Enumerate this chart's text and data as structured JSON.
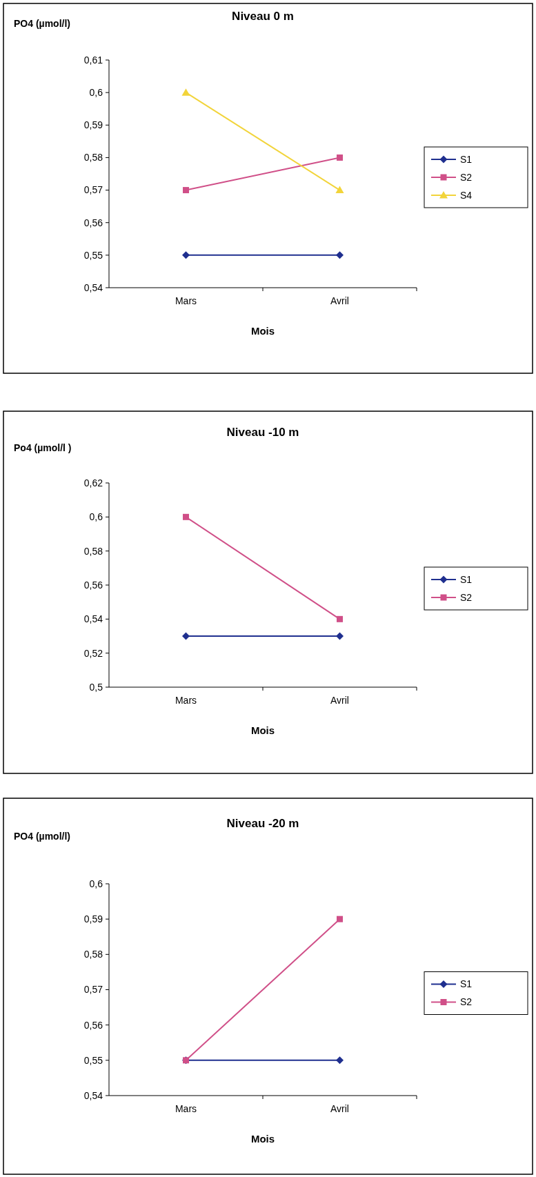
{
  "chart_data": [
    {
      "type": "line",
      "title": "Niveau 0 m",
      "xlabel": "Mois",
      "ylabel": "PO4 (µmol/l)",
      "categories": [
        "Mars",
        "Avril"
      ],
      "ylim": [
        0.54,
        0.61
      ],
      "yticks": [
        {
          "value": 0.54,
          "label": "0,54"
        },
        {
          "value": 0.55,
          "label": "0,55"
        },
        {
          "value": 0.56,
          "label": "0,56"
        },
        {
          "value": 0.57,
          "label": "0,57"
        },
        {
          "value": 0.58,
          "label": "0,58"
        },
        {
          "value": 0.59,
          "label": "0,59"
        },
        {
          "value": 0.6,
          "label": "0,6"
        },
        {
          "value": 0.61,
          "label": "0,61"
        }
      ],
      "legend": "right",
      "grid": false,
      "series": [
        {
          "name": "S1",
          "color": "#1f2f8f",
          "marker": "diamond",
          "values": [
            0.55,
            0.55
          ]
        },
        {
          "name": "S2",
          "color": "#d04f88",
          "marker": "square",
          "values": [
            0.57,
            0.58
          ]
        },
        {
          "name": "S4",
          "color": "#f2d43a",
          "marker": "triangle",
          "values": [
            0.6,
            0.57
          ]
        }
      ]
    },
    {
      "type": "line",
      "title": "Niveau -10 m",
      "xlabel": "Mois",
      "ylabel": "Po4 (µmol/l )",
      "categories": [
        "Mars",
        "Avril"
      ],
      "ylim": [
        0.5,
        0.62
      ],
      "yticks": [
        {
          "value": 0.5,
          "label": "0,5"
        },
        {
          "value": 0.52,
          "label": "0,52"
        },
        {
          "value": 0.54,
          "label": "0,54"
        },
        {
          "value": 0.56,
          "label": "0,56"
        },
        {
          "value": 0.58,
          "label": "0,58"
        },
        {
          "value": 0.6,
          "label": "0,6"
        },
        {
          "value": 0.62,
          "label": "0,62"
        }
      ],
      "legend": "right",
      "grid": false,
      "series": [
        {
          "name": "S1",
          "color": "#1f2f8f",
          "marker": "diamond",
          "values": [
            0.53,
            0.53
          ]
        },
        {
          "name": "S2",
          "color": "#d04f88",
          "marker": "square",
          "values": [
            0.6,
            0.54
          ]
        }
      ]
    },
    {
      "type": "line",
      "title": "Niveau -20 m",
      "xlabel": "Mois",
      "ylabel": "PO4 (µmol/l)",
      "categories": [
        "Mars",
        "Avril"
      ],
      "ylim": [
        0.54,
        0.6
      ],
      "yticks": [
        {
          "value": 0.54,
          "label": "0,54"
        },
        {
          "value": 0.55,
          "label": "0,55"
        },
        {
          "value": 0.56,
          "label": "0,56"
        },
        {
          "value": 0.57,
          "label": "0,57"
        },
        {
          "value": 0.58,
          "label": "0,58"
        },
        {
          "value": 0.59,
          "label": "0,59"
        },
        {
          "value": 0.6,
          "label": "0,6"
        }
      ],
      "legend": "right",
      "grid": false,
      "series": [
        {
          "name": "S1",
          "color": "#1f2f8f",
          "marker": "diamond",
          "values": [
            0.55,
            0.55
          ]
        },
        {
          "name": "S2",
          "color": "#d04f88",
          "marker": "square",
          "values": [
            0.55,
            0.59
          ]
        }
      ]
    }
  ]
}
